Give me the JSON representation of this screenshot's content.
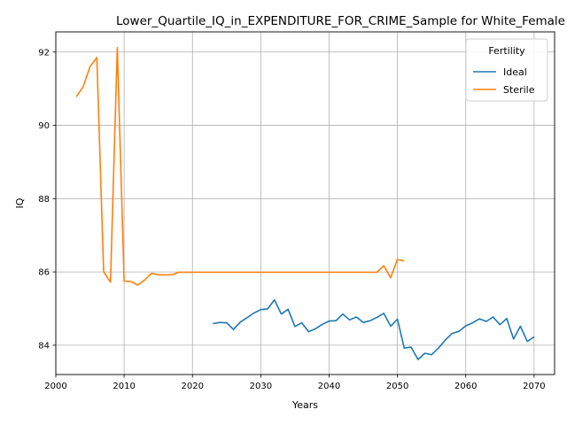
{
  "chart_data": {
    "type": "line",
    "title": "Lower_Quartile_IQ_in_EXPENDITURE_FOR_CRIME_Sample for White_Female",
    "xlabel": "Years",
    "ylabel": "IQ",
    "xlim": [
      2000,
      2073
    ],
    "ylim": [
      83.2,
      92.55
    ],
    "xticks": [
      2000,
      2010,
      2020,
      2030,
      2040,
      2050,
      2060,
      2070
    ],
    "yticks": [
      84,
      86,
      88,
      90,
      92
    ],
    "grid": true,
    "legend": {
      "title": "Fertility",
      "placement": "top-right"
    },
    "series": [
      {
        "name": "Ideal",
        "color": "#1f77b4",
        "x": [
          2023,
          2024,
          2025,
          2026,
          2027,
          2028,
          2029,
          2030,
          2031,
          2032,
          2033,
          2034,
          2035,
          2036,
          2037,
          2038,
          2039,
          2040,
          2041,
          2042,
          2043,
          2044,
          2045,
          2046,
          2047,
          2048,
          2049,
          2050,
          2051,
          2052,
          2053,
          2054,
          2055,
          2056,
          2057,
          2058,
          2059,
          2060,
          2061,
          2062,
          2063,
          2064,
          2065,
          2066,
          2067,
          2068,
          2069,
          2070
        ],
        "y": [
          84.59,
          84.62,
          84.61,
          84.43,
          84.63,
          84.75,
          84.88,
          84.97,
          84.99,
          85.24,
          84.85,
          84.98,
          84.51,
          84.61,
          84.37,
          84.45,
          84.57,
          84.66,
          84.67,
          84.85,
          84.69,
          84.77,
          84.62,
          84.67,
          84.76,
          84.87,
          84.52,
          84.71,
          83.92,
          83.95,
          83.61,
          83.78,
          83.74,
          83.92,
          84.14,
          84.32,
          84.38,
          84.53,
          84.61,
          84.72,
          84.65,
          84.77,
          84.56,
          84.73,
          84.17,
          84.52,
          84.1,
          84.23
        ]
      },
      {
        "name": "Sterile",
        "color": "#ff7f0e",
        "x": [
          2003,
          2004,
          2005,
          2006,
          2007,
          2008,
          2009,
          2010,
          2011,
          2012,
          2013,
          2014,
          2015,
          2016,
          2017,
          2018,
          2019,
          2020,
          2021,
          2022,
          2023,
          2024,
          2025,
          2026,
          2027,
          2028,
          2029,
          2030,
          2031,
          2032,
          2033,
          2034,
          2035,
          2036,
          2037,
          2038,
          2039,
          2040,
          2041,
          2042,
          2043,
          2044,
          2045,
          2046,
          2047,
          2048,
          2049,
          2050,
          2051
        ],
        "y": [
          90.78,
          91.05,
          91.6,
          91.85,
          86.0,
          85.72,
          92.12,
          85.75,
          85.74,
          85.64,
          85.78,
          85.96,
          85.92,
          85.92,
          85.92,
          85.99,
          85.99,
          85.99,
          85.99,
          85.99,
          85.99,
          85.99,
          85.99,
          85.99,
          85.99,
          85.99,
          85.99,
          85.99,
          85.99,
          85.99,
          85.99,
          85.99,
          85.99,
          85.99,
          85.99,
          85.99,
          85.99,
          85.99,
          85.99,
          85.99,
          85.99,
          85.99,
          85.99,
          85.99,
          85.99,
          86.17,
          85.84,
          86.34,
          86.3
        ]
      }
    ]
  }
}
